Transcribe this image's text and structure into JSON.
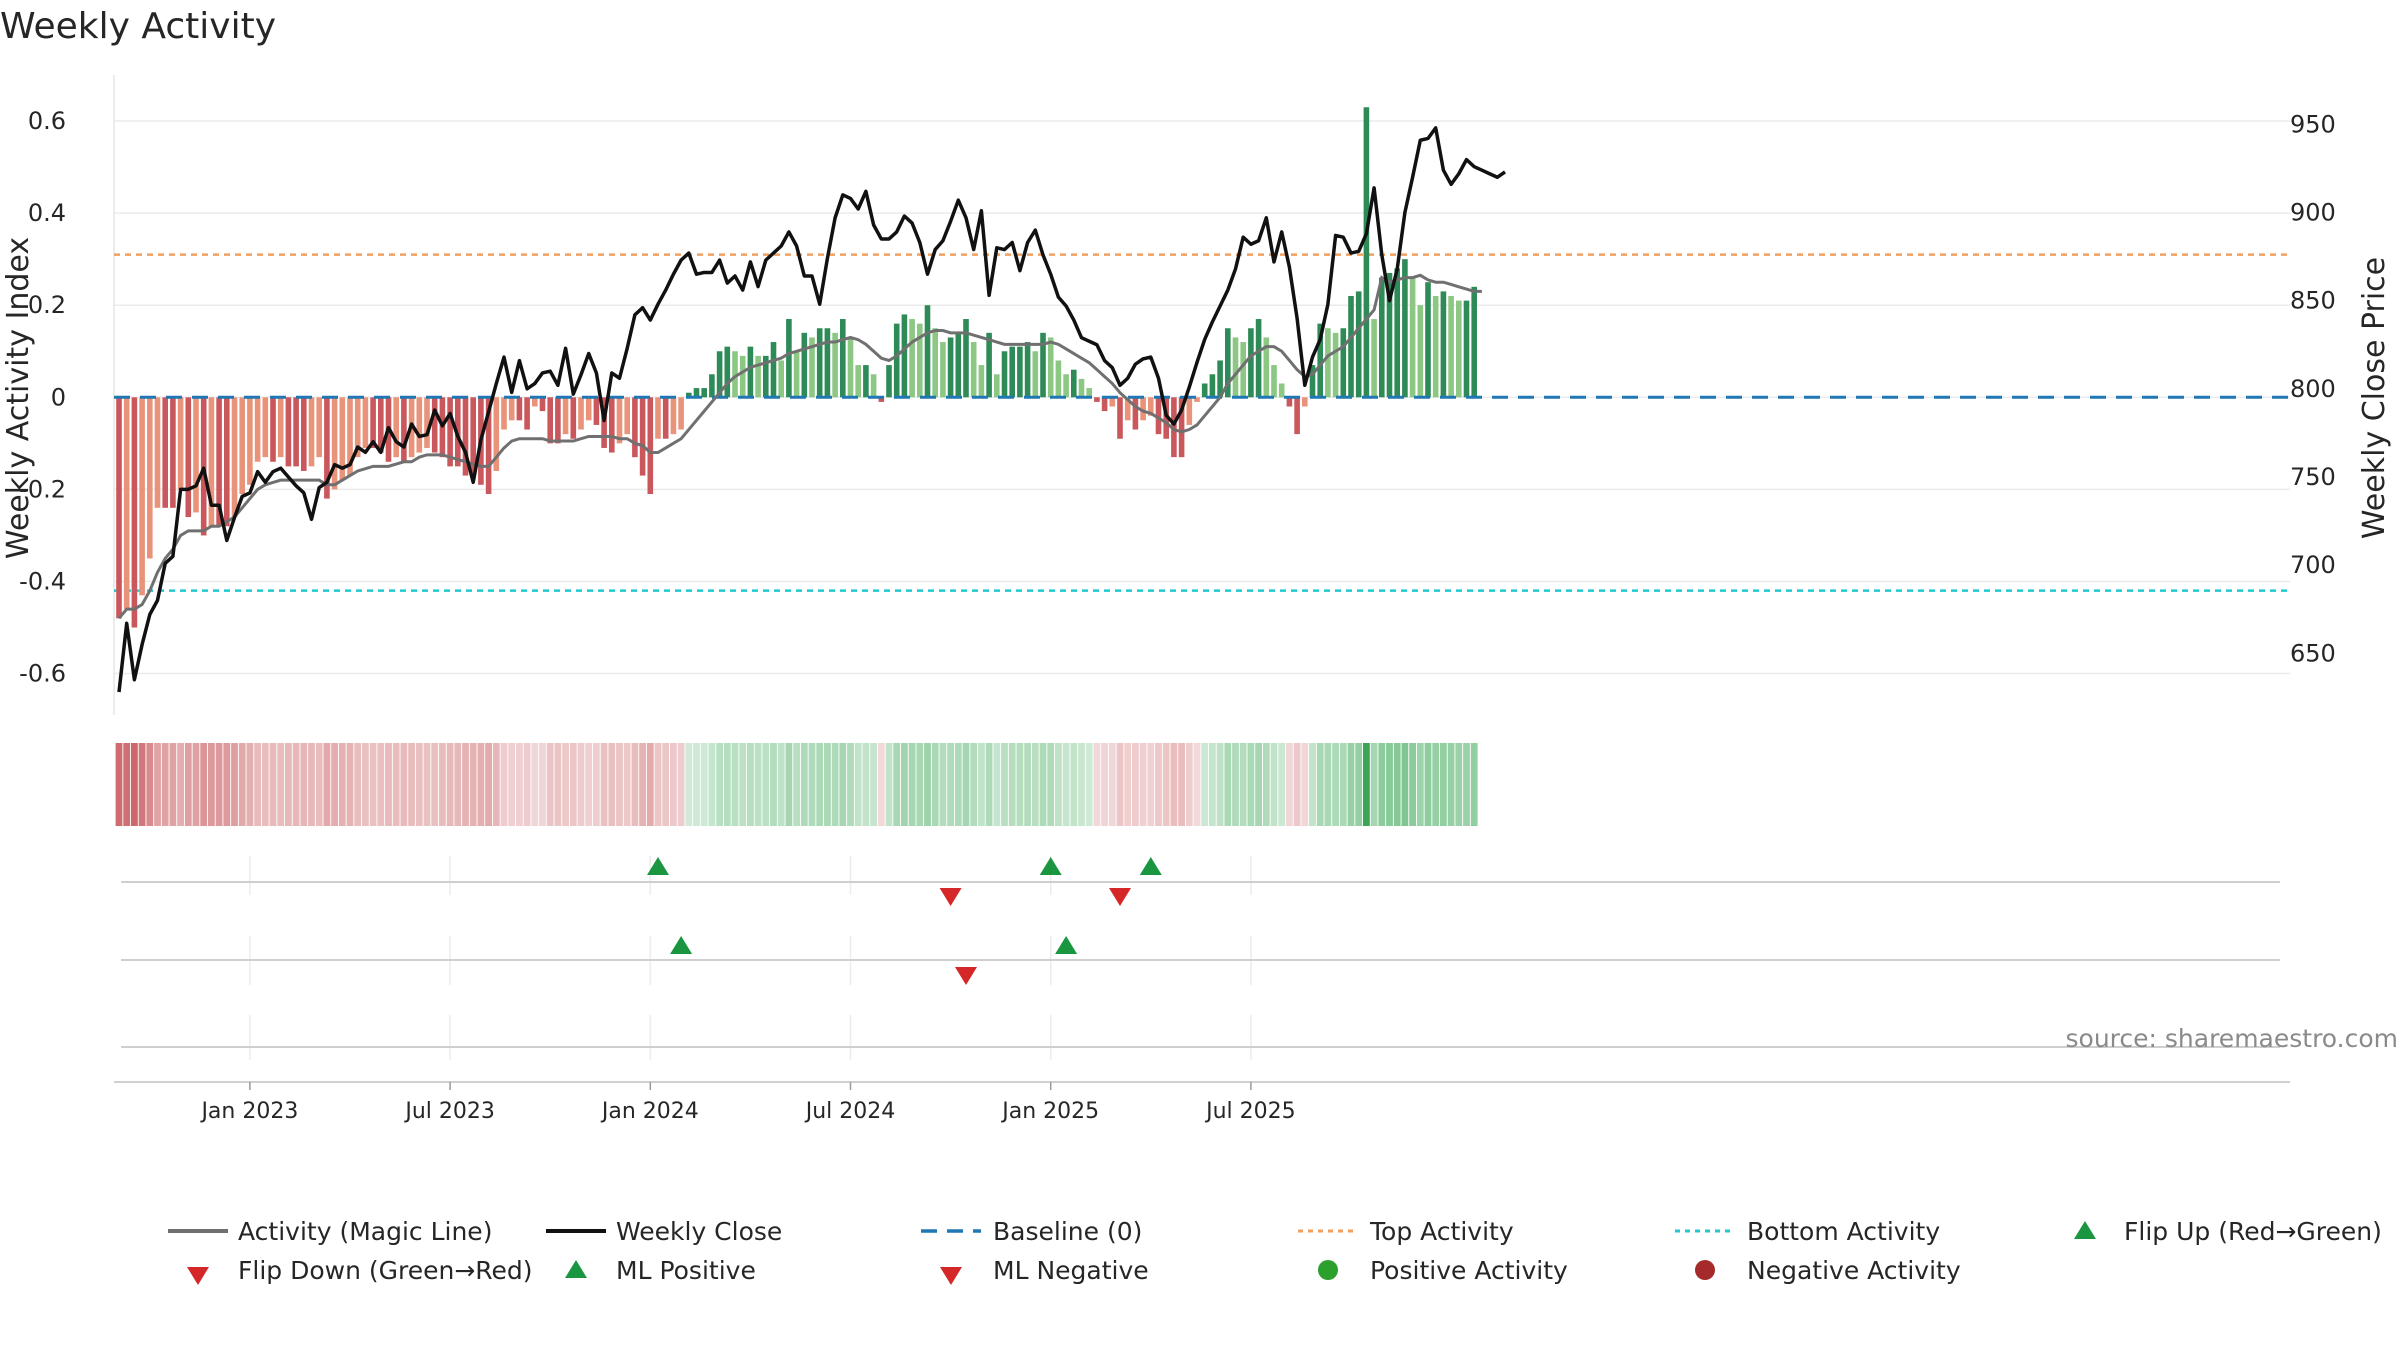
{
  "chart_data": {
    "type": "bar+line",
    "title": "Weekly Activity",
    "ylabel_left": "Weekly Activity Index",
    "ylabel_right": "Weekly Close Price",
    "left_ticks": [
      0.6,
      0.4,
      0.2,
      0,
      -0.2,
      -0.4,
      -0.6
    ],
    "left_tick_labels": [
      "0.6",
      "0.4",
      "0.2",
      "0",
      "-0.2",
      "-0.4",
      "-0.6"
    ],
    "left_ylim": [
      -0.69,
      0.7
    ],
    "right_ticks": [
      950,
      900,
      850,
      800,
      750,
      700,
      650
    ],
    "right_tick_labels": [
      "950",
      "900",
      "850",
      "800",
      "750",
      "700",
      "650"
    ],
    "right_ylim": [
      615,
      978
    ],
    "x_tick_labels": [
      "Jan 2023",
      "Jul 2023",
      "Jan 2024",
      "Jul 2024",
      "Jan 2025",
      "Jul 2025"
    ],
    "x_tick_weeks": [
      17,
      43,
      69,
      95,
      121,
      147
    ],
    "top_activity": 0.31,
    "bottom_activity": -0.42,
    "colors": {
      "strong_green": "#2e8b57",
      "light_green": "#8cc784",
      "strong_red": "#c9575c",
      "light_red": "#e8937a",
      "magic_line": "#707070",
      "close_line": "#111111",
      "baseline": "#1f77b4",
      "top_activity": "#f0a060",
      "bottom_activity": "#22c8d0",
      "marker_green": "#1a9641",
      "marker_red": "#d62728",
      "pos_activity_dot": "#2ca02c",
      "neg_activity_dot": "#a52a2a"
    },
    "activity": [
      -0.48,
      -0.46,
      -0.5,
      -0.43,
      -0.35,
      -0.24,
      -0.24,
      -0.24,
      -0.2,
      -0.26,
      -0.25,
      -0.3,
      -0.28,
      -0.28,
      -0.28,
      -0.26,
      -0.21,
      -0.19,
      -0.14,
      -0.13,
      -0.14,
      -0.13,
      -0.15,
      -0.15,
      -0.16,
      -0.15,
      -0.13,
      -0.22,
      -0.2,
      -0.18,
      -0.17,
      -0.13,
      -0.11,
      -0.11,
      -0.12,
      -0.14,
      -0.13,
      -0.14,
      -0.13,
      -0.12,
      -0.11,
      -0.12,
      -0.13,
      -0.15,
      -0.15,
      -0.17,
      -0.17,
      -0.19,
      -0.21,
      -0.16,
      -0.07,
      -0.05,
      -0.05,
      -0.07,
      -0.02,
      -0.03,
      -0.1,
      -0.1,
      -0.08,
      -0.09,
      -0.07,
      -0.05,
      -0.06,
      -0.11,
      -0.12,
      -0.1,
      -0.08,
      -0.13,
      -0.17,
      -0.21,
      -0.09,
      -0.09,
      -0.08,
      -0.07,
      0.01,
      0.02,
      0.02,
      0.05,
      0.1,
      0.11,
      0.1,
      0.09,
      0.11,
      0.09,
      0.09,
      0.12,
      0.08,
      0.17,
      0.1,
      0.14,
      0.13,
      0.15,
      0.15,
      0.14,
      0.17,
      0.13,
      0.07,
      0.07,
      0.05,
      -0.01,
      0.07,
      0.16,
      0.18,
      0.17,
      0.16,
      0.2,
      0.15,
      0.12,
      0.13,
      0.14,
      0.17,
      0.12,
      0.07,
      0.14,
      0.05,
      0.1,
      0.11,
      0.11,
      0.12,
      0.1,
      0.14,
      0.13,
      0.08,
      0.05,
      0.06,
      0.04,
      0.02,
      -0.01,
      -0.03,
      -0.02,
      -0.09,
      -0.05,
      -0.07,
      -0.05,
      -0.04,
      -0.08,
      -0.09,
      -0.13,
      -0.13,
      -0.06,
      -0.01,
      0.03,
      0.05,
      0.08,
      0.15,
      0.13,
      0.12,
      0.15,
      0.17,
      0.13,
      0.07,
      0.03,
      -0.02,
      -0.08,
      -0.02,
      0.07,
      0.16,
      0.15,
      0.14,
      0.15,
      0.22,
      0.23,
      0.63,
      0.17,
      0.26,
      0.27,
      0.28,
      0.3,
      0.26,
      0.2,
      0.25,
      0.22,
      0.23,
      0.22,
      0.21,
      0.21,
      0.24
    ],
    "magic_line": [
      -0.48,
      -0.46,
      -0.46,
      -0.45,
      -0.42,
      -0.38,
      -0.35,
      -0.33,
      -0.3,
      -0.29,
      -0.29,
      -0.29,
      -0.28,
      -0.28,
      -0.27,
      -0.26,
      -0.24,
      -0.22,
      -0.2,
      -0.19,
      -0.185,
      -0.18,
      -0.18,
      -0.18,
      -0.18,
      -0.18,
      -0.18,
      -0.19,
      -0.19,
      -0.18,
      -0.17,
      -0.16,
      -0.155,
      -0.15,
      -0.15,
      -0.15,
      -0.145,
      -0.14,
      -0.14,
      -0.13,
      -0.125,
      -0.125,
      -0.125,
      -0.13,
      -0.135,
      -0.14,
      -0.145,
      -0.15,
      -0.15,
      -0.13,
      -0.11,
      -0.095,
      -0.09,
      -0.09,
      -0.09,
      -0.09,
      -0.095,
      -0.095,
      -0.095,
      -0.095,
      -0.09,
      -0.085,
      -0.085,
      -0.085,
      -0.085,
      -0.09,
      -0.09,
      -0.1,
      -0.105,
      -0.12,
      -0.12,
      -0.11,
      -0.1,
      -0.09,
      -0.07,
      -0.05,
      -0.03,
      -0.01,
      0.01,
      0.03,
      0.045,
      0.055,
      0.065,
      0.07,
      0.075,
      0.08,
      0.085,
      0.095,
      0.1,
      0.105,
      0.11,
      0.115,
      0.12,
      0.12,
      0.125,
      0.13,
      0.125,
      0.115,
      0.1,
      0.085,
      0.08,
      0.09,
      0.105,
      0.12,
      0.13,
      0.14,
      0.145,
      0.145,
      0.14,
      0.14,
      0.14,
      0.135,
      0.13,
      0.125,
      0.12,
      0.115,
      0.115,
      0.115,
      0.115,
      0.115,
      0.115,
      0.12,
      0.115,
      0.105,
      0.095,
      0.085,
      0.075,
      0.06,
      0.045,
      0.03,
      0.01,
      -0.005,
      -0.02,
      -0.03,
      -0.035,
      -0.045,
      -0.055,
      -0.07,
      -0.075,
      -0.07,
      -0.06,
      -0.04,
      -0.02,
      0.0,
      0.03,
      0.05,
      0.07,
      0.09,
      0.1,
      0.11,
      0.11,
      0.1,
      0.08,
      0.06,
      0.045,
      0.05,
      0.07,
      0.09,
      0.1,
      0.11,
      0.13,
      0.15,
      0.17,
      0.19,
      0.26,
      0.25,
      0.255,
      0.26,
      0.26,
      0.265,
      0.255,
      0.25,
      0.25,
      0.245,
      0.24,
      0.235,
      0.23,
      0.23
    ],
    "weekly_close": [
      628,
      667,
      635,
      655,
      672,
      680,
      701,
      705,
      743,
      743,
      745,
      755,
      734,
      734,
      714,
      727,
      739,
      741,
      753,
      747,
      753,
      755,
      750,
      745,
      741,
      726,
      744,
      747,
      757,
      755,
      757,
      767,
      764,
      770,
      764,
      778,
      770,
      767,
      780,
      773,
      774,
      788,
      779,
      786,
      773,
      764,
      747,
      771,
      787,
      803,
      818,
      798,
      816,
      800,
      803,
      809,
      810,
      802,
      823,
      797,
      808,
      820,
      809,
      782,
      809,
      806,
      823,
      842,
      846,
      839,
      848,
      856,
      865,
      873,
      877,
      865,
      866,
      866,
      873,
      860,
      864,
      856,
      872,
      858,
      873,
      877,
      881,
      889,
      881,
      864,
      864,
      848,
      874,
      897,
      910,
      908,
      902,
      912,
      893,
      885,
      885,
      889,
      898,
      894,
      883,
      865,
      879,
      884,
      895,
      907,
      897,
      879,
      901,
      853,
      880,
      879,
      883,
      867,
      883,
      890,
      876,
      865,
      852,
      847,
      839,
      829,
      827,
      825,
      816,
      812,
      802,
      806,
      814,
      817,
      818,
      806,
      785,
      780,
      788,
      801,
      815,
      828,
      838,
      847,
      856,
      868,
      886,
      882,
      884,
      897,
      872,
      889,
      869,
      840,
      802,
      818,
      828,
      848,
      887,
      886,
      877,
      878,
      888,
      914,
      876,
      850,
      868,
      900,
      920,
      941,
      942,
      948,
      924,
      916,
      922,
      930,
      926,
      924,
      922,
      920,
      923
    ]
  },
  "markers": {
    "row1_flip_up_weeks": [
      70,
      121,
      134
    ],
    "row1_flip_down_weeks": [
      108,
      130
    ],
    "row2_ml_positive_weeks": [
      73,
      123
    ],
    "row2_ml_negative_weeks": [
      110
    ]
  },
  "legend": {
    "magic_line": "Activity (Magic Line)",
    "weekly_close": "Weekly Close",
    "baseline": "Baseline (0)",
    "top_activity": "Top Activity",
    "bottom_activity": "Bottom Activity",
    "flip_up": "Flip Up (Red→Green)",
    "flip_down": "Flip Down (Green→Red)",
    "ml_positive": "ML Positive",
    "ml_negative": "ML Negative",
    "positive_activity": "Positive Activity",
    "negative_activity": "Negative Activity"
  },
  "source": "source: sharemaestro.com"
}
